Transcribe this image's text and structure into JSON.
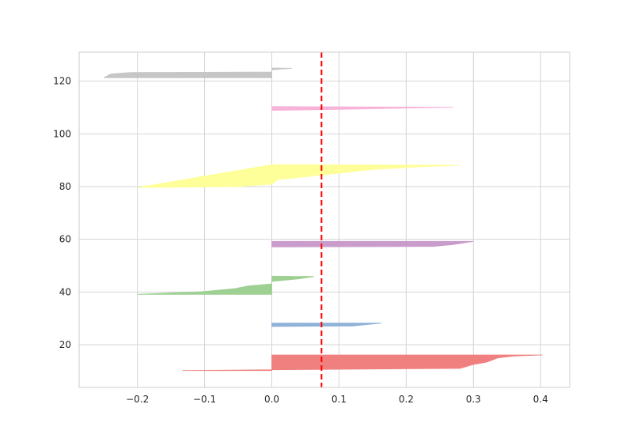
{
  "chart_data": {
    "type": "area",
    "title": "",
    "xlabel": "",
    "ylabel": "",
    "xlim": [
      -0.2867,
      0.4433
    ],
    "ylim": [
      3.8,
      131.0
    ],
    "xticks": [
      -0.2,
      -0.1,
      0.0,
      0.1,
      0.2,
      0.3,
      0.4
    ],
    "xtick_labels": [
      "−0.2",
      "−0.1",
      "0.0",
      "0.1",
      "0.2",
      "0.3",
      "0.4"
    ],
    "yticks": [
      20,
      40,
      60,
      80,
      100,
      120
    ],
    "ytick_labels": [
      "20",
      "40",
      "60",
      "80",
      "100",
      "120"
    ],
    "grid": true,
    "reference_line": {
      "x": 0.074,
      "color": "#ff0000",
      "style": "dashed"
    },
    "series": [
      {
        "color": "#f08080",
        "points": [
          [
            0.0,
            10.2
          ],
          [
            -0.133,
            10.2
          ],
          [
            0.0,
            10.5
          ],
          [
            0.28,
            11.0
          ],
          [
            0.283,
            11.2
          ],
          [
            0.3,
            12.5
          ],
          [
            0.32,
            13.4
          ],
          [
            0.336,
            15.0
          ],
          [
            0.36,
            15.7
          ],
          [
            0.403,
            16.1
          ],
          [
            0.0,
            16.1
          ]
        ]
      },
      {
        "color": "#8fb2d8",
        "points": [
          [
            0.0,
            26.9
          ],
          [
            0.12,
            27.1
          ],
          [
            0.163,
            28.2
          ],
          [
            0.0,
            28.2
          ]
        ]
      },
      {
        "color": "#9ed093",
        "points": [
          [
            0.0,
            39.1
          ],
          [
            -0.2,
            39.1
          ],
          [
            -0.1,
            40.2
          ],
          [
            -0.055,
            41.3
          ],
          [
            -0.035,
            42.3
          ],
          [
            0.0,
            43.1
          ],
          [
            0.0,
            44.0
          ],
          [
            0.04,
            45.0
          ],
          [
            0.063,
            45.9
          ],
          [
            0.0,
            46.0
          ]
        ]
      },
      {
        "color": "#c99ccb",
        "points": [
          [
            0.0,
            57.1
          ],
          [
            0.24,
            57.3
          ],
          [
            0.27,
            58.0
          ],
          [
            0.3,
            59.2
          ],
          [
            0.0,
            59.2
          ]
        ]
      },
      {
        "color": "#ffff99",
        "points": [
          [
            -0.2,
            79.6
          ],
          [
            -0.05,
            80.0
          ],
          [
            0.0,
            80.9
          ],
          [
            0.01,
            82.7
          ],
          [
            0.08,
            84.5
          ],
          [
            0.15,
            86.5
          ],
          [
            0.22,
            87.5
          ],
          [
            0.28,
            88.1
          ],
          [
            0.0,
            88.3
          ]
        ]
      },
      {
        "color": "#f8b4d8",
        "points": [
          [
            0.0,
            108.9
          ],
          [
            0.1,
            109.3
          ],
          [
            0.27,
            110.1
          ],
          [
            0.0,
            110.4
          ]
        ]
      },
      {
        "color": "#c6c6c6",
        "points": [
          [
            0.0,
            121.3
          ],
          [
            -0.25,
            121.3
          ],
          [
            -0.24,
            122.7
          ],
          [
            -0.21,
            123.3
          ],
          [
            0.0,
            123.5
          ],
          [
            0.0,
            124.3
          ],
          [
            0.03,
            124.9
          ],
          [
            0.0,
            125.0
          ]
        ]
      }
    ]
  }
}
